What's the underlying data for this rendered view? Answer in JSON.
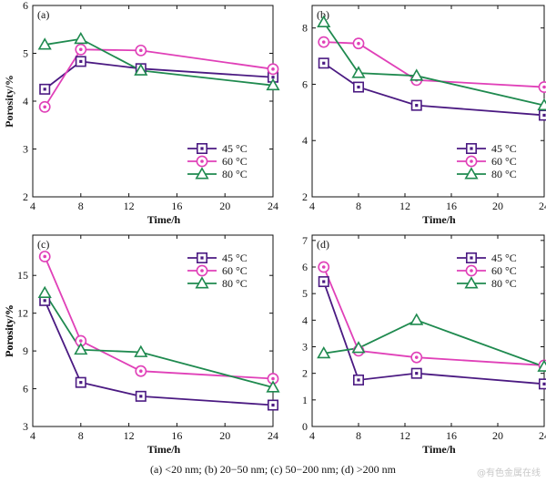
{
  "caption": "(a) <20 nm; (b) 20−50 nm; (c) 50−200 nm; (d) >200 nm",
  "watermark": "@有色金属在线",
  "colors": {
    "45": "#4b1a82",
    "60": "#e040b8",
    "80": "#1f8a4f"
  },
  "chart_data": [
    {
      "type": "line",
      "panel_label": "(a)",
      "xlabel": "Time/h",
      "ylabel": "Porosity/%",
      "xlim": [
        4,
        24
      ],
      "ylim": [
        2,
        6
      ],
      "xticks": [
        4,
        8,
        12,
        16,
        20,
        24
      ],
      "yticks": [
        2,
        3,
        4,
        5,
        6
      ],
      "x": [
        5,
        8,
        13,
        24
      ],
      "legend_position": "bottom-right",
      "series": [
        {
          "name": "45 °C",
          "marker": "square",
          "color_key": "45",
          "values": [
            4.25,
            4.83,
            4.68,
            4.5
          ]
        },
        {
          "name": "60 °C",
          "marker": "circle",
          "color_key": "60",
          "values": [
            3.88,
            5.08,
            5.06,
            4.67
          ]
        },
        {
          "name": "80 °C",
          "marker": "triangle",
          "color_key": "80",
          "values": [
            5.18,
            5.3,
            4.64,
            4.33
          ]
        }
      ]
    },
    {
      "type": "line",
      "panel_label": "(b)",
      "xlabel": "Time/h",
      "ylabel": "",
      "xlim": [
        4,
        24
      ],
      "ylim": [
        2,
        8.8
      ],
      "xticks": [
        4,
        8,
        12,
        16,
        20,
        24
      ],
      "yticks": [
        2,
        4,
        6,
        8
      ],
      "x": [
        5,
        8,
        13,
        24
      ],
      "legend_position": "bottom-right",
      "series": [
        {
          "name": "45 °C",
          "marker": "square",
          "color_key": "45",
          "values": [
            6.75,
            5.9,
            5.25,
            4.9
          ]
        },
        {
          "name": "60 °C",
          "marker": "circle",
          "color_key": "60",
          "values": [
            7.5,
            7.45,
            6.15,
            5.9
          ]
        },
        {
          "name": "80 °C",
          "marker": "triangle",
          "color_key": "80",
          "values": [
            8.2,
            6.4,
            6.3,
            5.25
          ]
        }
      ]
    },
    {
      "type": "line",
      "panel_label": "(c)",
      "xlabel": "Time/h",
      "ylabel": "Porosity/%",
      "xlim": [
        4,
        24
      ],
      "ylim": [
        3,
        18.2
      ],
      "xticks": [
        4,
        8,
        12,
        16,
        20,
        24
      ],
      "yticks": [
        3,
        6,
        9,
        12,
        15
      ],
      "x": [
        5,
        8,
        13,
        24
      ],
      "legend_position": "top-right",
      "series": [
        {
          "name": "45 °C",
          "marker": "square",
          "color_key": "45",
          "values": [
            13.0,
            6.5,
            5.4,
            4.7
          ]
        },
        {
          "name": "60 °C",
          "marker": "circle",
          "color_key": "60",
          "values": [
            16.5,
            9.8,
            7.4,
            6.8
          ]
        },
        {
          "name": "80 °C",
          "marker": "triangle",
          "color_key": "80",
          "values": [
            13.6,
            9.1,
            8.9,
            6.1
          ]
        }
      ]
    },
    {
      "type": "line",
      "panel_label": "(d)",
      "xlabel": "Time/h",
      "ylabel": "Porosity/%",
      "xlim": [
        4,
        24
      ],
      "ylim": [
        0,
        7.2
      ],
      "xticks": [
        4,
        8,
        12,
        16,
        20,
        24
      ],
      "yticks": [
        0,
        1,
        2,
        3,
        4,
        5,
        6,
        7
      ],
      "x": [
        5,
        8,
        13,
        24
      ],
      "legend_position": "top-right",
      "series": [
        {
          "name": "45 °C",
          "marker": "square",
          "color_key": "45",
          "values": [
            5.45,
            1.75,
            2.0,
            1.6
          ]
        },
        {
          "name": "60 °C",
          "marker": "circle",
          "color_key": "60",
          "values": [
            6.0,
            2.85,
            2.6,
            2.3
          ]
        },
        {
          "name": "80 °C",
          "marker": "triangle",
          "color_key": "80",
          "values": [
            2.75,
            2.95,
            4.0,
            2.25
          ]
        }
      ]
    }
  ]
}
